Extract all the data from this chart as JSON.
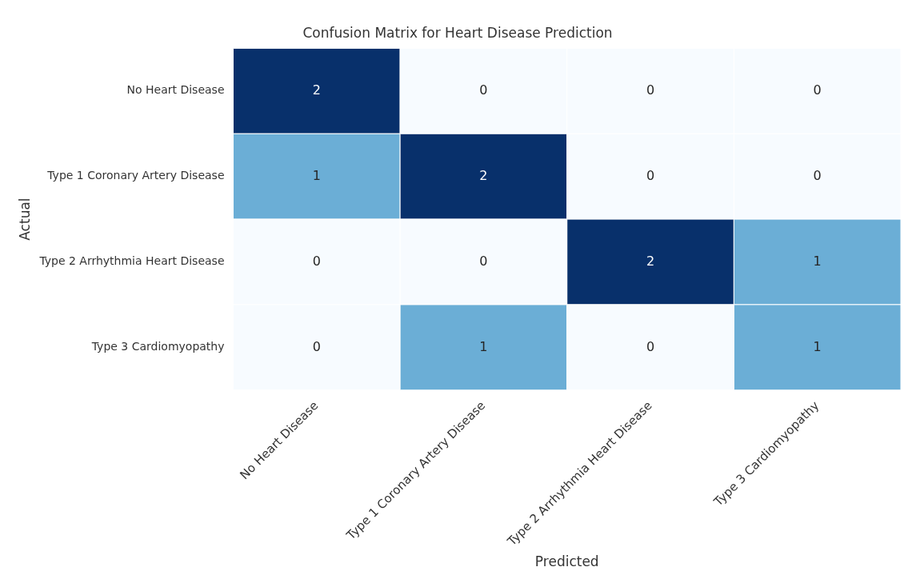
{
  "chart_data": {
    "type": "heatmap",
    "title": "Confusion Matrix for Heart Disease Prediction",
    "xlabel": "Predicted",
    "ylabel": "Actual",
    "categories": [
      "No Heart Disease",
      "Type 1 Coronary Artery Disease",
      "Type 2 Arrhythmia Heart Disease",
      "Type 3 Cardiomyopathy"
    ],
    "y_categories": [
      "No Heart Disease",
      "Type 1 Coronary Artery Disease",
      "Type 2 Arrhythmia Heart Disease",
      "Type 3 Cardiomyopathy"
    ],
    "cells": [
      [
        2,
        0,
        0,
        0
      ],
      [
        1,
        2,
        0,
        0
      ],
      [
        0,
        0,
        2,
        1
      ],
      [
        0,
        1,
        0,
        1
      ]
    ],
    "data_labels": true
  }
}
